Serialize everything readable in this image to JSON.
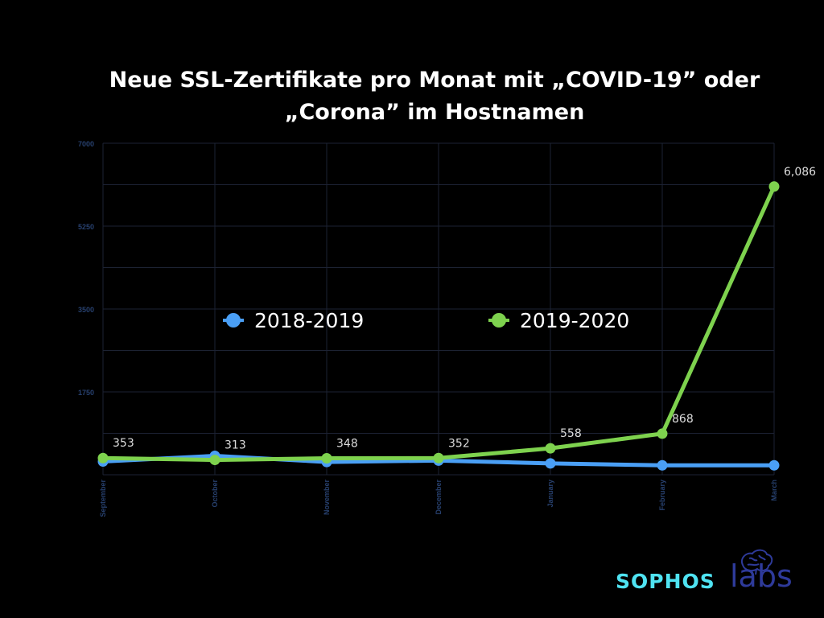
{
  "header": {
    "title_line1": "Neue SSL-Zertifikate pro Monat mit „COVID-19” oder",
    "title_line2": "„Corona” im Hostnamen"
  },
  "logo": {
    "word1": "SOPHOS",
    "word2": "labs"
  },
  "colors": {
    "background": "#000000",
    "grid": "#1c2233",
    "axis_text": "#27406e",
    "series_2018": "#4a9ff5",
    "series_2019": "#7ed24e",
    "label_text": "#dddddd"
  },
  "chart_data": {
    "type": "line",
    "title": "Neue SSL-Zertifikate pro Monat mit „COVID-19” oder „Corona” im Hostnamen",
    "xlabel": "",
    "ylabel": "",
    "categories": [
      "September",
      "October",
      "November",
      "December",
      "January",
      "February",
      "March"
    ],
    "ylim": [
      0,
      7000
    ],
    "yticks": [
      1750,
      3500,
      5250,
      7000
    ],
    "ytick_labels": [
      "1750",
      "3500",
      "5250",
      "7000"
    ],
    "grid": true,
    "legend": "center",
    "series": [
      {
        "name": "2018-2019",
        "color": "#4a9ff5",
        "values": [
          280,
          400,
          270,
          300,
          240,
          200,
          200
        ]
      },
      {
        "name": "2019-2020",
        "color": "#7ed24e",
        "values": [
          353,
          313,
          348,
          352,
          558,
          868,
          6086
        ],
        "labels": [
          "353",
          "313",
          "348",
          "352",
          "558",
          "868",
          "6,086"
        ]
      }
    ]
  }
}
